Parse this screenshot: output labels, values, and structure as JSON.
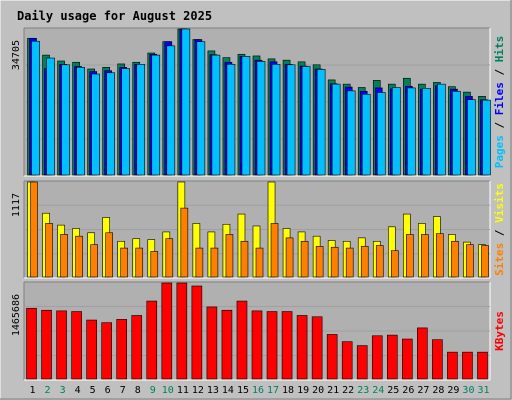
{
  "chart_data": {
    "type": "bar",
    "title": "Daily usage for August 2025",
    "x": [
      "1",
      "2",
      "3",
      "4",
      "5",
      "6",
      "7",
      "8",
      "9",
      "10",
      "11",
      "12",
      "13",
      "14",
      "15",
      "16",
      "17",
      "18",
      "19",
      "20",
      "21",
      "22",
      "23",
      "24",
      "25",
      "26",
      "27",
      "28",
      "29",
      "30",
      "31"
    ],
    "weekend_days": [
      "2",
      "3",
      "9",
      "10",
      "16",
      "17",
      "23",
      "24",
      "30",
      "31"
    ],
    "colors": {
      "background": "#c0c0c0",
      "plot_bg": "#b0b0b0",
      "title": "#0000ff",
      "hits": "#00805c",
      "files": "#0000ff",
      "pages": "#00c0ff",
      "visits": "#ffff00",
      "sites": "#ff8000",
      "kbytes": "#ff0000",
      "weekend_tick": "#00805c",
      "weekday_tick": "#000000"
    },
    "panels": [
      {
        "name": "hits-files-pages",
        "ymax_label": "34705",
        "ymax": 34705,
        "labels": [
          {
            "text": "Pages",
            "color": "#00c0ff"
          },
          {
            "text": " / ",
            "color": "#000000"
          },
          {
            "text": "Files",
            "color": "#0000ff"
          },
          {
            "text": " / ",
            "color": "#000000"
          },
          {
            "text": "Hits",
            "color": "#00805c"
          }
        ],
        "series": [
          {
            "name": "Hits",
            "color": "#00805c",
            "values": [
              32500,
              28500,
              27100,
              26800,
              25200,
              25600,
              26400,
              26800,
              29000,
              31700,
              34705,
              32200,
              29500,
              27900,
              28700,
              28300,
              27600,
              27300,
              26900,
              26200,
              22600,
              21600,
              20800,
              22500,
              21600,
              23000,
              21600,
              22000,
              21000,
              19700,
              18700
            ]
          },
          {
            "name": "Files",
            "color": "#0000ff",
            "values": [
              32500,
              25300,
              26300,
              25800,
              24600,
              24800,
              25600,
              26300,
              28700,
              31700,
              34705,
              32200,
              28600,
              26800,
              28200,
              27300,
              26900,
              26300,
              25900,
              25200,
              21700,
              20900,
              19900,
              20700,
              20500,
              21100,
              20400,
              21200,
              20400,
              18700,
              17900
            ]
          },
          {
            "name": "Pages",
            "color": "#00c0ff",
            "values": [
              31800,
              27800,
              26200,
              25600,
              24000,
              24300,
              25300,
              26300,
              28500,
              30700,
              34705,
              31700,
              28500,
              26300,
              28200,
              27000,
              26300,
              26200,
              25800,
              25100,
              21600,
              20000,
              19200,
              19600,
              20800,
              20700,
              20600,
              21600,
              19900,
              17900,
              17800
            ]
          }
        ]
      },
      {
        "name": "visits-sites",
        "ymax_label": "1117",
        "ymax": 1117,
        "labels": [
          {
            "text": "Sites",
            "color": "#ff8000"
          },
          {
            "text": " / ",
            "color": "#000000"
          },
          {
            "text": "Visits",
            "color": "#ffff00"
          }
        ],
        "series": [
          {
            "name": "Visits",
            "color": "#ffff00",
            "values": [
              1117,
              750,
              610,
              570,
              520,
              700,
              420,
              450,
              440,
              530,
              1117,
              630,
              530,
              620,
              740,
              600,
              1117,
              570,
              530,
              480,
              430,
              420,
              460,
              420,
              590,
              740,
              630,
              710,
              500,
              410,
              380
            ]
          },
          {
            "name": "Sites",
            "color": "#ff8000",
            "values": [
              1117,
              630,
              500,
              480,
              380,
              520,
              340,
              340,
              300,
              450,
              810,
              340,
              340,
              500,
              420,
              340,
              630,
              460,
              420,
              360,
              350,
              340,
              360,
              370,
              310,
              500,
              500,
              510,
              420,
              380,
              370
            ]
          }
        ]
      },
      {
        "name": "kbytes",
        "ymax_label": "1465686",
        "ymax": 1465686,
        "labels": [
          {
            "text": "KBytes",
            "color": "#ff0000"
          }
        ],
        "series": [
          {
            "name": "KBytes",
            "color": "#ff0000",
            "values": [
              1080000,
              1050000,
              1040000,
              1030000,
              900000,
              860000,
              910000,
              970000,
              1190000,
              1465686,
              1465686,
              1420000,
              1100000,
              1050000,
              1190000,
              1040000,
              1030000,
              1030000,
              970000,
              950000,
              680000,
              570000,
              510000,
              660000,
              670000,
              610000,
              780000,
              600000,
              410000,
              410000,
              410000
            ]
          }
        ]
      }
    ]
  }
}
